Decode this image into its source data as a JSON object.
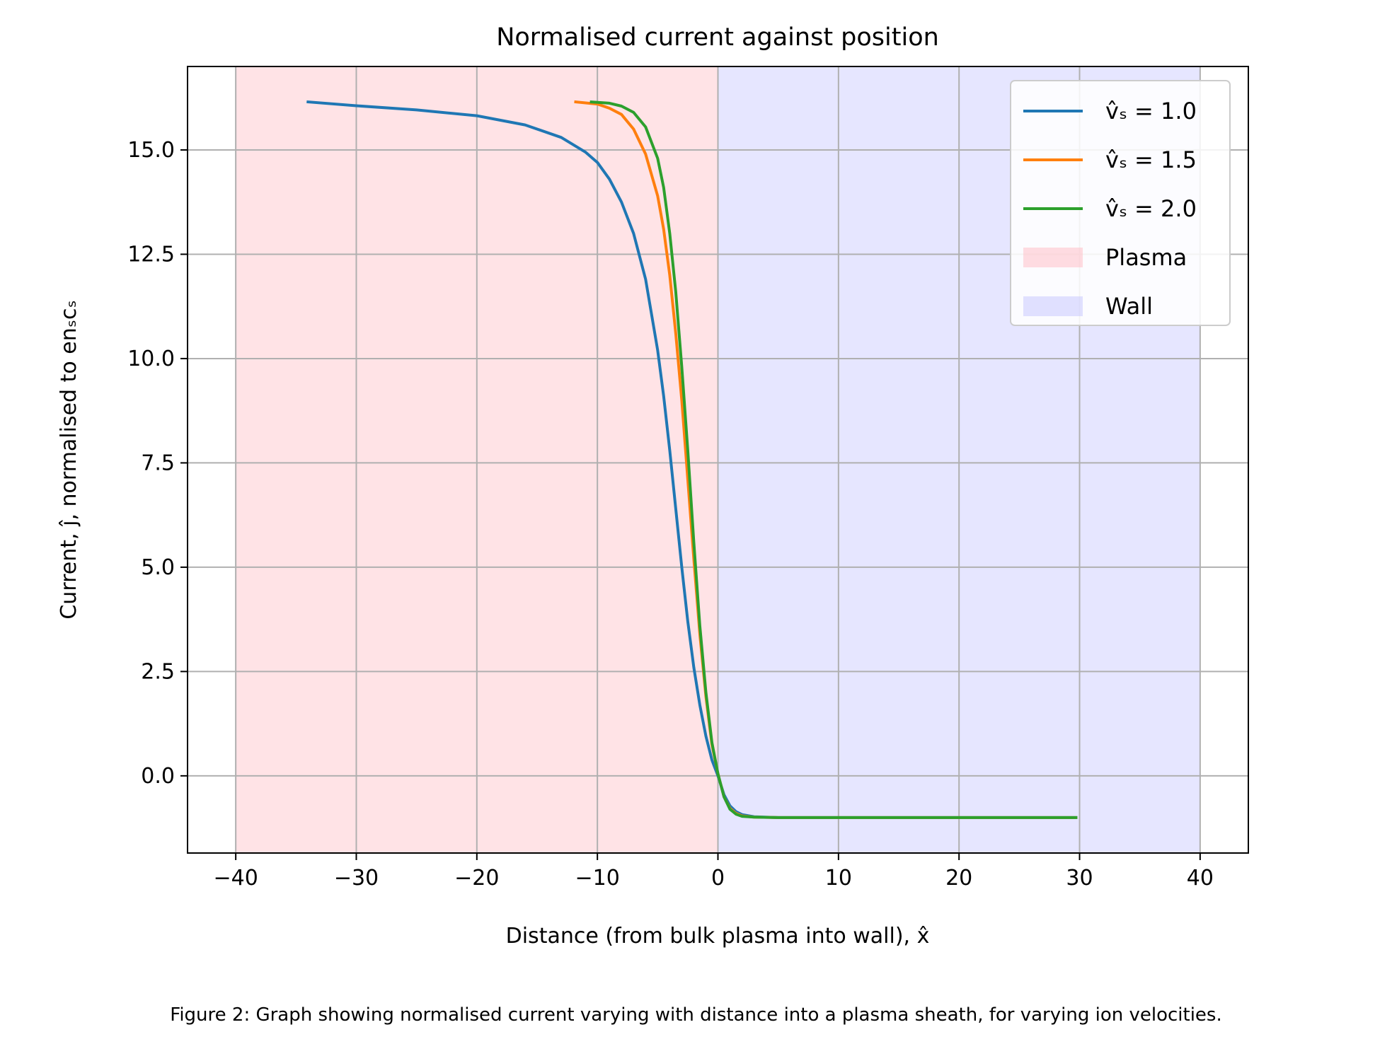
{
  "chart_data": {
    "type": "line",
    "title": "Normalised current against position",
    "xlabel": "Distance (from bulk plasma into wall), x̂",
    "ylabel": "Current, ĵ, normalised to enₛcₛ",
    "xlim": [
      -44,
      44
    ],
    "ylim": [
      -1.85,
      17.0
    ],
    "xticks": [
      -40,
      -30,
      -20,
      -10,
      0,
      10,
      20,
      30,
      40
    ],
    "xtick_labels": [
      "−40",
      "−30",
      "−20",
      "−10",
      "0",
      "10",
      "20",
      "30",
      "40"
    ],
    "yticks": [
      0,
      2.5,
      5,
      7.5,
      10,
      12.5,
      15
    ],
    "ytick_labels": [
      "0.0",
      "2.5",
      "5.0",
      "7.5",
      "10.0",
      "12.5",
      "15.0"
    ],
    "grid": true,
    "legend_position": "top-right",
    "regions": [
      {
        "name": "Plasma",
        "x_range": [
          -40,
          0
        ],
        "color": "#ffc0c8"
      },
      {
        "name": "Wall",
        "x_range": [
          0,
          40
        ],
        "color": "#c8c8ff"
      }
    ],
    "series": [
      {
        "name": "v̂ₛ = 1.0",
        "color": "#1f77b4",
        "x": [
          -34,
          -30,
          -25,
          -20,
          -16,
          -13,
          -11,
          -10,
          -9,
          -8,
          -7,
          -6,
          -5,
          -4.5,
          -4,
          -3.5,
          -3,
          -2.5,
          -2,
          -1.5,
          -1,
          -0.5,
          0,
          0.5,
          1,
          1.5,
          2,
          3,
          5,
          10,
          20,
          29.7
        ],
        "y": [
          16.15,
          16.06,
          15.96,
          15.82,
          15.6,
          15.3,
          14.95,
          14.7,
          14.3,
          13.75,
          13.0,
          11.9,
          10.2,
          9.1,
          7.8,
          6.4,
          5.0,
          3.7,
          2.6,
          1.7,
          0.95,
          0.38,
          0.0,
          -0.45,
          -0.72,
          -0.86,
          -0.93,
          -0.98,
          -1.0,
          -1.0,
          -1.0,
          -1.0
        ]
      },
      {
        "name": "v̂ₛ = 1.5",
        "color": "#ff7f0e",
        "x": [
          -11.8,
          -10,
          -9,
          -8,
          -7,
          -6,
          -5,
          -4.5,
          -4,
          -3.5,
          -3,
          -2.5,
          -2,
          -1.5,
          -1,
          -0.5,
          0,
          0.5,
          1,
          1.5,
          2,
          3,
          5,
          10,
          20,
          29.7
        ],
        "y": [
          16.15,
          16.1,
          16.0,
          15.85,
          15.5,
          14.9,
          13.9,
          13.1,
          12.0,
          10.6,
          9.0,
          7.1,
          5.2,
          3.4,
          1.9,
          0.75,
          0.05,
          -0.5,
          -0.78,
          -0.9,
          -0.96,
          -0.99,
          -1.0,
          -1.0,
          -1.0,
          -1.0
        ]
      },
      {
        "name": "v̂ₛ = 2.0",
        "color": "#2ca02c",
        "x": [
          -10.5,
          -9,
          -8,
          -7,
          -6,
          -5,
          -4.5,
          -4,
          -3.5,
          -3,
          -2.5,
          -2,
          -1.5,
          -1,
          -0.5,
          0,
          0.5,
          1,
          1.5,
          2,
          3,
          5,
          10,
          20,
          29.7
        ],
        "y": [
          16.15,
          16.12,
          16.05,
          15.9,
          15.55,
          14.8,
          14.1,
          13.0,
          11.6,
          9.8,
          7.8,
          5.6,
          3.6,
          2.0,
          0.8,
          0.05,
          -0.5,
          -0.8,
          -0.92,
          -0.97,
          -0.99,
          -1.0,
          -1.0,
          -1.0,
          -1.0
        ]
      }
    ]
  },
  "caption": "Figure 2: Graph showing normalised current varying with distance into a plasma sheath, for varying ion velocities."
}
